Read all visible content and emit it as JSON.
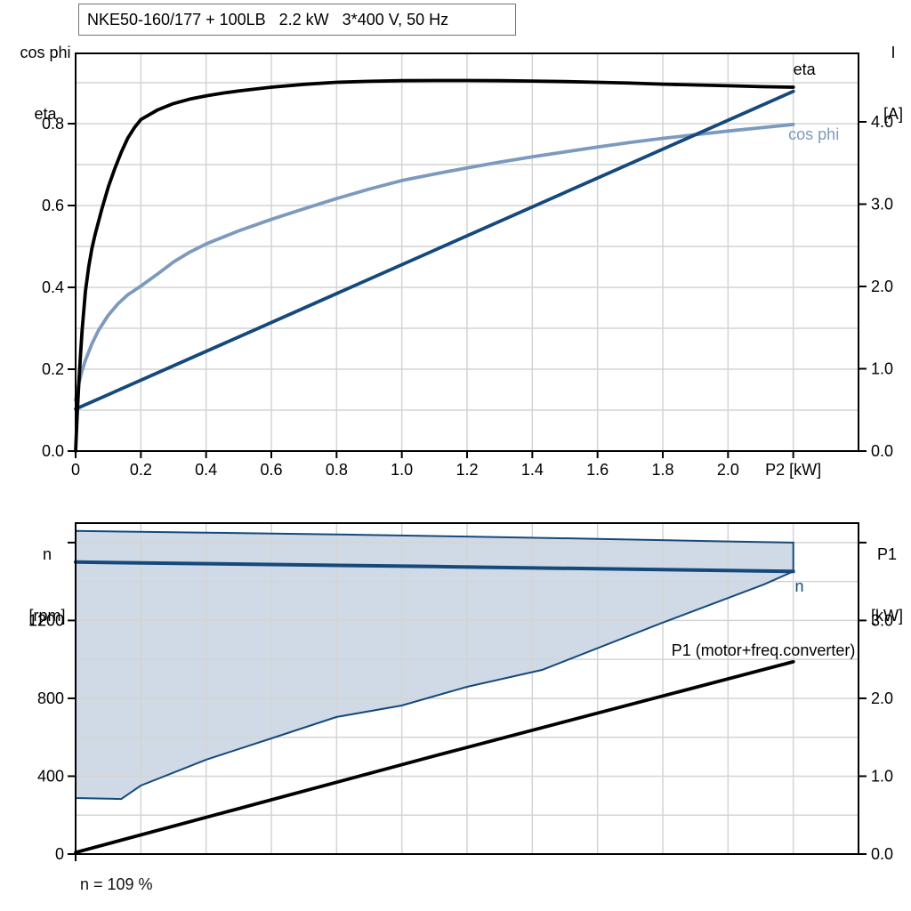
{
  "colors": {
    "dark_blue": "#15497c",
    "light_blue": "#7c9abe",
    "envelope_fill": "#cfdae6",
    "grid": "#d4d4d4",
    "axis": "#000000"
  },
  "chart_data": [
    {
      "id": "top",
      "type": "line",
      "title": "NKE50-160/177 + 100LB   2.2 kW   3*400 V, 50 Hz",
      "y_left_header": [
        "cos phi",
        "eta"
      ],
      "y_right_header": [
        "I",
        "[A]"
      ],
      "x": {
        "label": "P2 [kW]",
        "range": [
          0,
          2.4
        ],
        "grid_step": 0.2,
        "ticks": [
          {
            "v": 0,
            "label": "0"
          },
          {
            "v": 0.2,
            "label": "0.2"
          },
          {
            "v": 0.4,
            "label": "0.4"
          },
          {
            "v": 0.6,
            "label": "0.6"
          },
          {
            "v": 0.8,
            "label": "0.8"
          },
          {
            "v": 1.0,
            "label": "1.0"
          },
          {
            "v": 1.2,
            "label": "1.2"
          },
          {
            "v": 1.4,
            "label": "1.4"
          },
          {
            "v": 1.6,
            "label": "1.6"
          },
          {
            "v": 1.8,
            "label": "1.8"
          },
          {
            "v": 2.0,
            "label": "2.0"
          },
          {
            "v": 2.2,
            "label": "P2 [kW]"
          }
        ]
      },
      "y_left": {
        "label": "cos phi / eta",
        "range": [
          0,
          0.9717
        ],
        "grid_step": 0.1,
        "ticks": [
          {
            "v": 0,
            "label": "0.0"
          },
          {
            "v": 0.2,
            "label": "0.2"
          },
          {
            "v": 0.4,
            "label": "0.4"
          },
          {
            "v": 0.6,
            "label": "0.6"
          },
          {
            "v": 0.8,
            "label": "0.8"
          }
        ]
      },
      "y_right": {
        "label": "I [A]",
        "range": [
          0,
          4.832
        ],
        "ticks": [
          {
            "v": 0,
            "label": "0.0"
          },
          {
            "v": 1,
            "label": "1.0"
          },
          {
            "v": 2,
            "label": "2.0"
          },
          {
            "v": 3,
            "label": "3.0"
          },
          {
            "v": 4,
            "label": "4.0"
          }
        ]
      },
      "series": [
        {
          "name": "cos phi",
          "axis": "left",
          "color": "light_blue",
          "width": 3.8,
          "points": [
            [
              0,
              0.125
            ],
            [
              0.01,
              0.165
            ],
            [
              0.02,
              0.197
            ],
            [
              0.03,
              0.222
            ],
            [
              0.05,
              0.262
            ],
            [
              0.07,
              0.295
            ],
            [
              0.1,
              0.332
            ],
            [
              0.13,
              0.36
            ],
            [
              0.16,
              0.382
            ],
            [
              0.2,
              0.403
            ],
            [
              0.25,
              0.432
            ],
            [
              0.3,
              0.462
            ],
            [
              0.35,
              0.486
            ],
            [
              0.4,
              0.506
            ],
            [
              0.5,
              0.538
            ],
            [
              0.6,
              0.566
            ],
            [
              0.7,
              0.592
            ],
            [
              0.8,
              0.617
            ],
            [
              0.9,
              0.64
            ],
            [
              1.0,
              0.661
            ],
            [
              1.1,
              0.677
            ],
            [
              1.2,
              0.692
            ],
            [
              1.3,
              0.706
            ],
            [
              1.4,
              0.719
            ],
            [
              1.5,
              0.731
            ],
            [
              1.6,
              0.743
            ],
            [
              1.7,
              0.754
            ],
            [
              1.8,
              0.764
            ],
            [
              1.9,
              0.773
            ],
            [
              2.0,
              0.782
            ],
            [
              2.1,
              0.79
            ],
            [
              2.2,
              0.798
            ]
          ]
        },
        {
          "name": "I",
          "axis": "right",
          "color": "dark_blue",
          "width": 3.8,
          "points": [
            [
              0,
              0.51
            ],
            [
              0.55,
              1.475
            ],
            [
              1.1,
              2.44
            ],
            [
              1.65,
              3.405
            ],
            [
              2.2,
              4.37
            ]
          ]
        },
        {
          "name": "eta",
          "axis": "left",
          "color": "axis",
          "width": 3.8,
          "points": [
            [
              0,
              0
            ],
            [
              0.005,
              0.09
            ],
            [
              0.01,
              0.17
            ],
            [
              0.015,
              0.235
            ],
            [
              0.02,
              0.295
            ],
            [
              0.03,
              0.39
            ],
            [
              0.04,
              0.45
            ],
            [
              0.05,
              0.495
            ],
            [
              0.06,
              0.53
            ],
            [
              0.08,
              0.59
            ],
            [
              0.1,
              0.645
            ],
            [
              0.12,
              0.69
            ],
            [
              0.14,
              0.73
            ],
            [
              0.16,
              0.765
            ],
            [
              0.18,
              0.79
            ],
            [
              0.2,
              0.81
            ],
            [
              0.25,
              0.833
            ],
            [
              0.3,
              0.849
            ],
            [
              0.35,
              0.86
            ],
            [
              0.4,
              0.868
            ],
            [
              0.45,
              0.8745
            ],
            [
              0.5,
              0.88
            ],
            [
              0.6,
              0.889
            ],
            [
              0.7,
              0.896
            ],
            [
              0.8,
              0.901
            ],
            [
              0.9,
              0.9035
            ],
            [
              1.0,
              0.905
            ],
            [
              1.1,
              0.9055
            ],
            [
              1.2,
              0.9055
            ],
            [
              1.3,
              0.905
            ],
            [
              1.4,
              0.904
            ],
            [
              1.5,
              0.9028
            ],
            [
              1.6,
              0.901
            ],
            [
              1.7,
              0.899
            ],
            [
              1.8,
              0.8965
            ],
            [
              1.9,
              0.8945
            ],
            [
              2.0,
              0.8925
            ],
            [
              2.1,
              0.8905
            ],
            [
              2.2,
              0.889
            ]
          ]
        }
      ],
      "annotations": [
        {
          "text": "eta",
          "x": 2.2,
          "y": 0.9196,
          "axis": "left",
          "anchor": "start",
          "color": "axis"
        },
        {
          "text": "cos phi",
          "x": 2.185,
          "y": 0.7608,
          "axis": "left",
          "anchor": "start",
          "color": "light_blue"
        }
      ]
    },
    {
      "id": "bottom",
      "type": "line",
      "title": "",
      "y_left_header": [
        "n",
        "[rpm]"
      ],
      "y_right_header": [
        "P1",
        "[kW]"
      ],
      "footer": "n = 109 %",
      "x": {
        "label": "",
        "range": [
          0,
          2.4
        ],
        "grid_step": 0.2,
        "ticks": [
          {
            "v": 0,
            "label": ""
          }
        ]
      },
      "y_left": {
        "label": "n [rpm]",
        "range": [
          0,
          1700
        ],
        "grid_step": 200,
        "ticks": [
          {
            "v": 0,
            "label": "0"
          },
          {
            "v": 400,
            "label": "400"
          },
          {
            "v": 800,
            "label": "800"
          },
          {
            "v": 1200,
            "label": "1200"
          },
          {
            "v": 1600,
            "label": ""
          }
        ]
      },
      "y_right": {
        "label": "P1 [kW]",
        "range": [
          0,
          4.25
        ],
        "ticks": [
          {
            "v": 0,
            "label": "0.0"
          },
          {
            "v": 1,
            "label": "1.0"
          },
          {
            "v": 2,
            "label": "2.0"
          },
          {
            "v": 3,
            "label": "3.0"
          },
          {
            "v": 4,
            "label": ""
          }
        ]
      },
      "series": [
        {
          "name": "speed range envelope",
          "shape": "polygon",
          "axis": "left",
          "fill": "envelope_fill",
          "color": "dark_blue",
          "width": 2,
          "points": [
            [
              0,
              1660
            ],
            [
              0.4,
              1651
            ],
            [
              0.8,
              1642
            ],
            [
              1.2,
              1631
            ],
            [
              1.6,
              1619
            ],
            [
              2.0,
              1606
            ],
            [
              2.2,
              1600
            ],
            [
              2.2,
              1452
            ],
            [
              2.11,
              1385
            ],
            [
              1.8,
              1189
            ],
            [
              1.43,
              946
            ],
            [
              1.2,
              859
            ],
            [
              1.0,
              763
            ],
            [
              0.8,
              704
            ],
            [
              0.6,
              594
            ],
            [
              0.4,
              485
            ],
            [
              0.2,
              352
            ],
            [
              0.14,
              283
            ],
            [
              0,
              288
            ]
          ]
        },
        {
          "name": "n",
          "axis": "left",
          "color": "dark_blue",
          "width": 4,
          "points": [
            [
              0,
              1500
            ],
            [
              1.1,
              1477
            ],
            [
              2.2,
              1452
            ]
          ]
        },
        {
          "name": "P1 (motor+freq.converter)",
          "axis": "right",
          "color": "axis",
          "width": 3.8,
          "points": [
            [
              0,
              0.02
            ],
            [
              1.1,
              1.26
            ],
            [
              2.2,
              2.47
            ]
          ]
        }
      ],
      "annotations": [
        {
          "text": "n",
          "x": 2.205,
          "y": 1349,
          "axis": "left",
          "anchor": "start",
          "color": "dark_blue"
        },
        {
          "text": "P1 (motor+freq.converter)",
          "x": 2.39,
          "y": 2.55,
          "axis": "right",
          "anchor": "end",
          "color": "axis"
        }
      ]
    }
  ]
}
